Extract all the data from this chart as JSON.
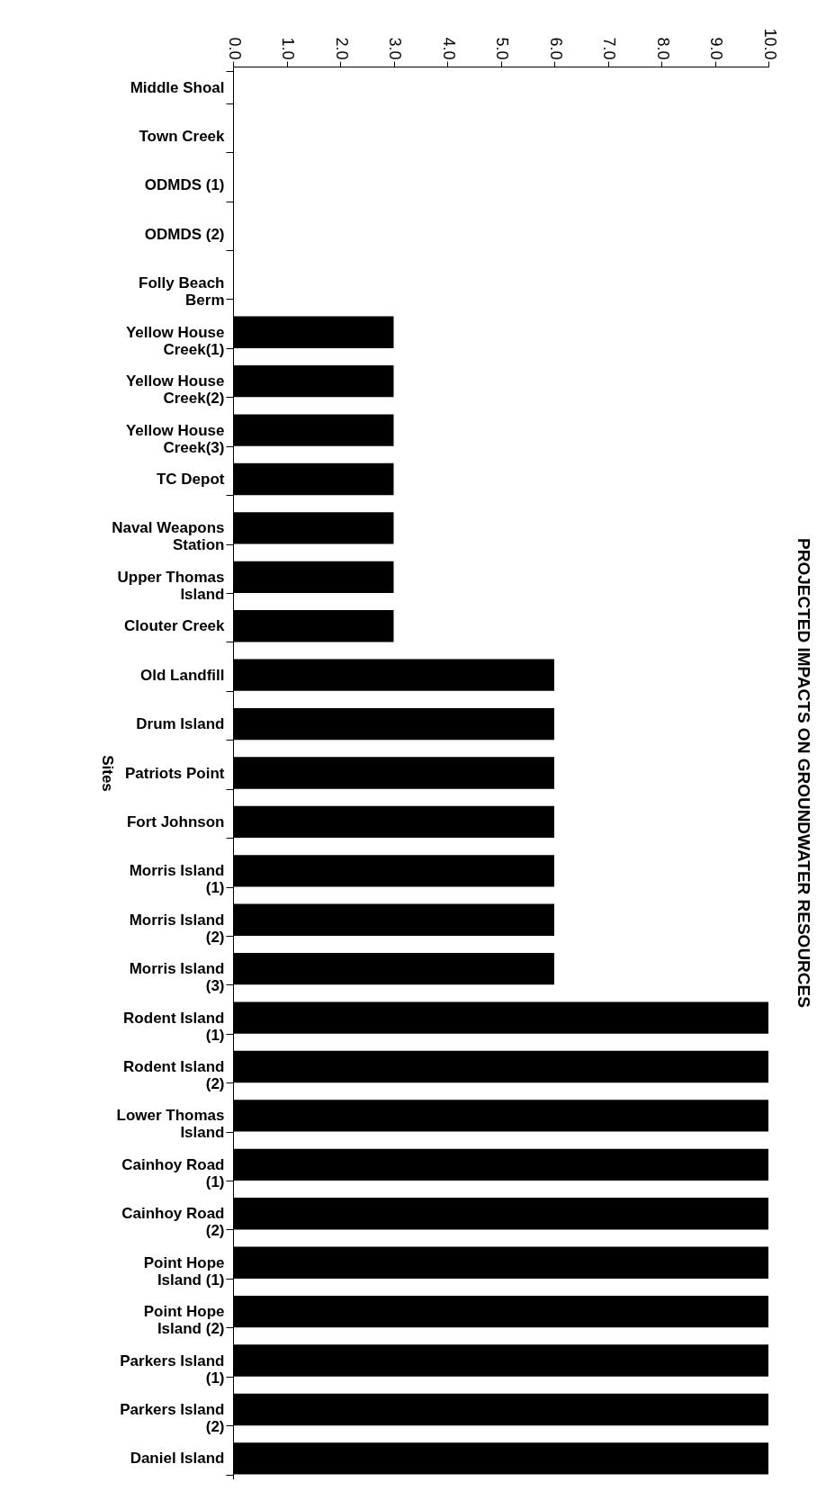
{
  "chart_data": {
    "type": "bar",
    "orientation": "horizontal",
    "title": "PROJECTED IMPACTS ON GROUNDWATER RESOURCES",
    "ylabel": "Sites",
    "categories": [
      "Middle Shoal",
      "Town Creek",
      "ODMDS  (1)",
      "ODMDS (2)",
      "Folly Beach Berm",
      "Yellow House Creek(1)",
      "Yellow House Creek(2)",
      "Yellow House Creek(3)",
      "TC Depot",
      "Naval Weapons Station",
      "Upper Thomas Island",
      "Clouter Creek",
      "Old Landfill",
      "Drum Island",
      "Patriots Point",
      "Fort Johnson",
      "Morris Island (1)",
      "Morris Island (2)",
      "Morris Island (3)",
      "Rodent Island (1)",
      "Rodent Island (2)",
      "Lower Thomas Island",
      "Cainhoy Road (1)",
      "Cainhoy Road (2)",
      "Point Hope Island (1)",
      "Point Hope Island (2)",
      "Parkers Island (1)",
      "Parkers Island (2)",
      "Daniel Island"
    ],
    "values": [
      0,
      0,
      0,
      0,
      0,
      3,
      3,
      3,
      3,
      3,
      3,
      3,
      6,
      6,
      6,
      6,
      6,
      6,
      6,
      10,
      10,
      10,
      10,
      10,
      10,
      10,
      10,
      10,
      10
    ],
    "color": "#000000",
    "xlim": [
      0,
      10
    ],
    "xticks": [
      {
        "value": 0,
        "label": "0.0"
      },
      {
        "value": 1,
        "label": "1.0"
      },
      {
        "value": 2,
        "label": "2.0"
      },
      {
        "value": 3,
        "label": "3.0"
      },
      {
        "value": 4,
        "label": "4.0"
      },
      {
        "value": 5,
        "label": "5.0"
      },
      {
        "value": 6,
        "label": "6.0"
      },
      {
        "value": 7,
        "label": "7.0"
      },
      {
        "value": 8,
        "label": "8.0"
      },
      {
        "value": 9,
        "label": "9.0"
      },
      {
        "value": 10,
        "label": "10.0"
      }
    ],
    "grid": false
  }
}
